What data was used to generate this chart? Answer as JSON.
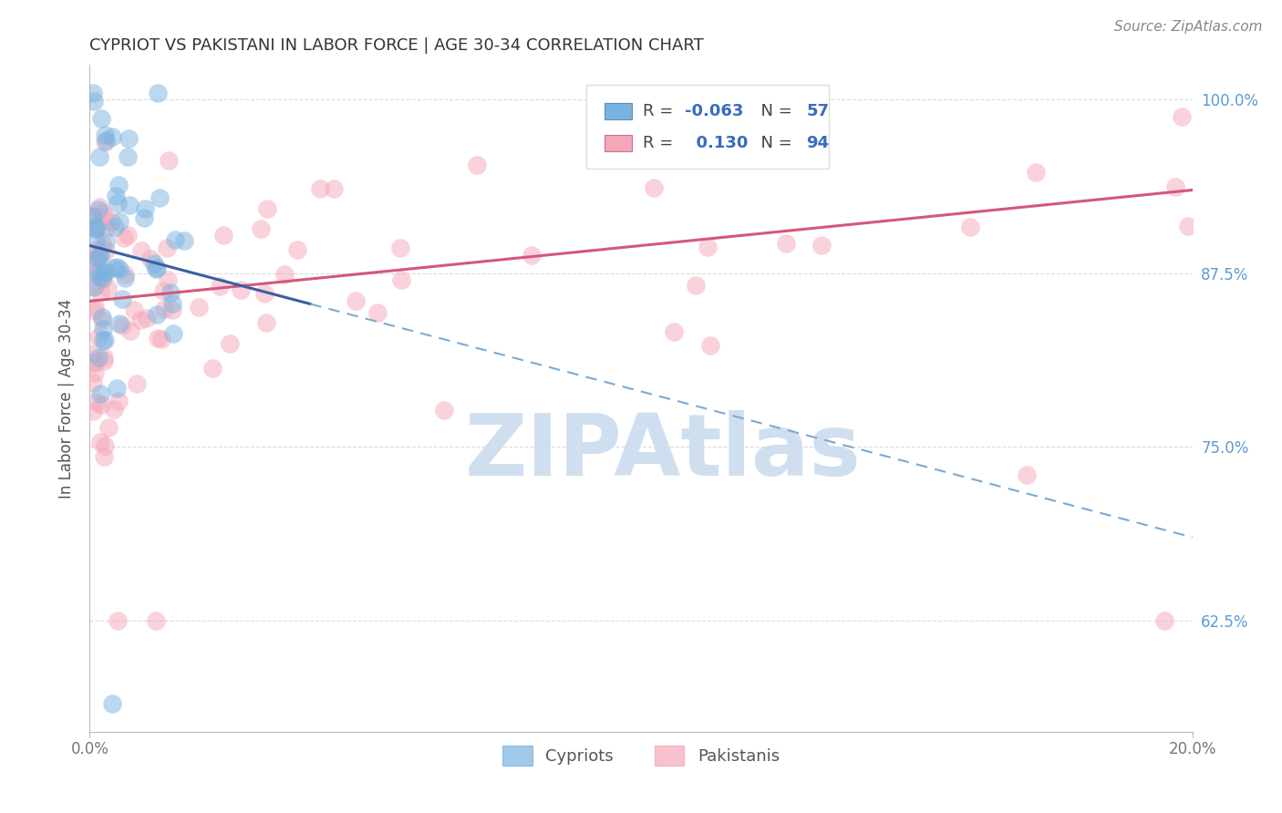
{
  "title": "CYPRIOT VS PAKISTANI IN LABOR FORCE | AGE 30-34 CORRELATION CHART",
  "source": "Source: ZipAtlas.com",
  "ylabel": "In Labor Force | Age 30-34",
  "xlim": [
    0.0,
    0.2
  ],
  "ylim": [
    0.545,
    1.025
  ],
  "ytick_positions": [
    0.625,
    0.75,
    0.875,
    1.0
  ],
  "ytick_labels": [
    "62.5%",
    "75.0%",
    "87.5%",
    "100.0%"
  ],
  "xtick_positions": [
    0.0,
    0.2
  ],
  "xtick_labels": [
    "0.0%",
    "20.0%"
  ],
  "legend_cypriot_R": "-0.063",
  "legend_cypriot_N": "57",
  "legend_pakistani_R": "0.130",
  "legend_pakistani_N": "94",
  "cypriot_color": "#7ab3e0",
  "pakistani_color": "#f4a7b9",
  "cypriot_line_solid_color": "#3a5fa0",
  "cypriot_line_dash_color": "#7aaad4",
  "pakistani_line_color": "#d45878",
  "watermark_color": "#d0dff0",
  "watermark_text": "ZIPAtlas",
  "background_color": "#ffffff",
  "grid_color": "#cccccc",
  "title_color": "#333333",
  "source_color": "#888888",
  "ylabel_color": "#555555",
  "tick_label_color_blue": "#5b9bd5",
  "tick_label_color_gray": "#777777",
  "legend_box_color": "#dddddd"
}
